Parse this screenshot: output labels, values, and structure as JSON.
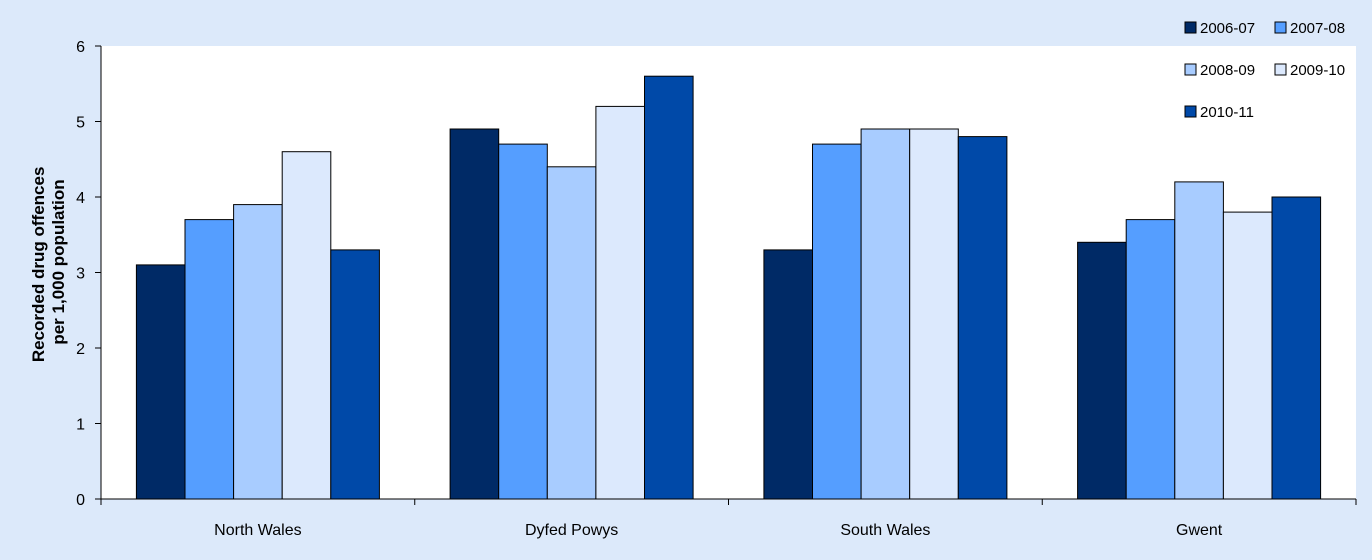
{
  "chart_data": {
    "type": "bar",
    "title": "",
    "xlabel": "",
    "ylabel": [
      "Recorded drug offences",
      "per 1,000 population"
    ],
    "ylim": [
      0,
      6
    ],
    "yticks": [
      "0",
      "1",
      "2",
      "3",
      "4",
      "5",
      "6"
    ],
    "categories": [
      "North Wales",
      "Dyfed Powys",
      "South Wales",
      "Gwent"
    ],
    "series": [
      {
        "name": "2006-07",
        "color": "#002a66",
        "values": [
          3.1,
          4.9,
          3.3,
          3.4
        ]
      },
      {
        "name": "2007-08",
        "color": "#559eff",
        "values": [
          3.7,
          4.7,
          4.7,
          3.7
        ]
      },
      {
        "name": "2008-09",
        "color": "#a8ccff",
        "values": [
          3.9,
          4.4,
          4.9,
          4.2
        ]
      },
      {
        "name": "2009-10",
        "color": "#dce9fd",
        "values": [
          4.6,
          5.2,
          4.9,
          3.8
        ]
      },
      {
        "name": "2010-11",
        "color": "#0049a8",
        "values": [
          3.3,
          5.6,
          4.8,
          4.0
        ]
      }
    ],
    "grid": false,
    "legend_position": "top-right",
    "colors": {
      "plot_background": "#ffffff",
      "page_background": "#dce9fa",
      "bar_outline": "#000000"
    }
  }
}
